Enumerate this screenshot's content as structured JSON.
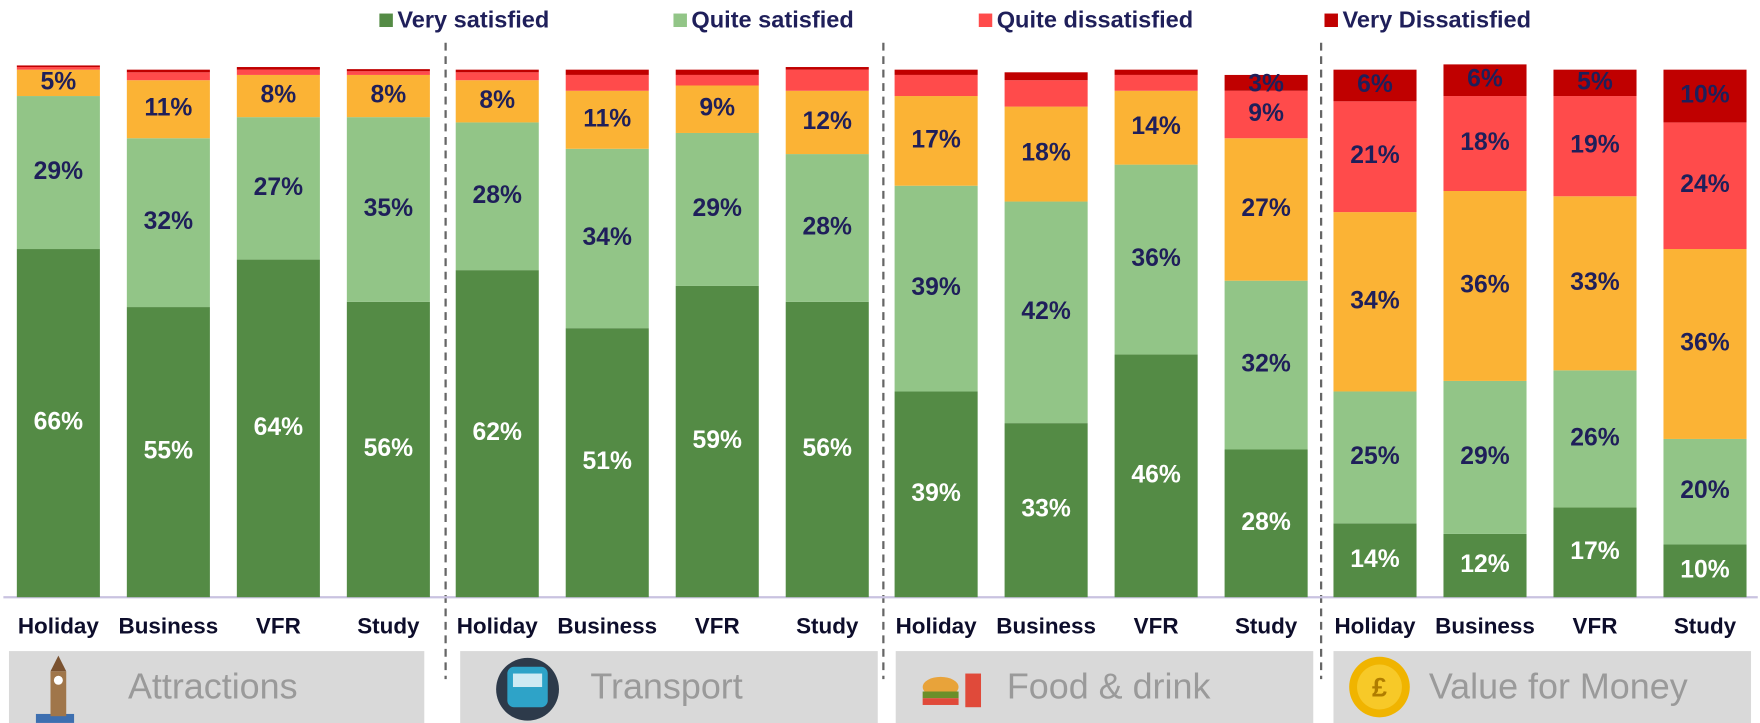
{
  "chart_data": {
    "type": "stacked_bar",
    "groups": [
      "Attractions",
      "Transport",
      "Food & drink",
      "Value for Money"
    ],
    "categories": [
      "Holiday",
      "Business",
      "VFR",
      "Study",
      "Holiday",
      "Business",
      "VFR",
      "Study",
      "Holiday",
      "Business",
      "VFR",
      "Study",
      "Holiday",
      "Business",
      "VFR",
      "Study"
    ],
    "ylim": [
      0,
      100
    ],
    "series": [
      {
        "name": "Very satisfied",
        "color": "#548b45",
        "label_color": "#ffffff",
        "values": [
          66,
          55,
          64,
          56,
          62,
          51,
          59,
          56,
          39,
          33,
          46,
          28,
          14,
          12,
          17,
          10
        ],
        "value_labels": [
          "66%",
          "55%",
          "64%",
          "56%",
          "62%",
          "51%",
          "59%",
          "56%",
          "39%",
          "33%",
          "46%",
          "28%",
          "14%",
          "12%",
          "17%",
          "10%"
        ]
      },
      {
        "name": "Quite satisfied",
        "color": "#92c587",
        "label_color": "#1f1f5a",
        "values": [
          29,
          32,
          27,
          35,
          28,
          34,
          29,
          28,
          39,
          42,
          36,
          32,
          25,
          29,
          26,
          20
        ],
        "value_labels": [
          "29%",
          "32%",
          "27%",
          "35%",
          "28%",
          "34%",
          "29%",
          "28%",
          "39%",
          "42%",
          "36%",
          "32%",
          "25%",
          "29%",
          "26%",
          "20%"
        ]
      },
      {
        "name": null,
        "color": "#fbb335",
        "label_color": "#1f1f5a",
        "values": [
          5,
          11,
          8,
          8,
          8,
          11,
          9,
          12,
          17,
          18,
          14,
          27,
          34,
          36,
          33,
          36
        ],
        "value_labels": [
          "5%",
          "11%",
          "8%",
          "8%",
          "8%",
          "11%",
          "9%",
          "12%",
          "17%",
          "18%",
          "14%",
          "27%",
          "34%",
          "36%",
          "33%",
          "36%"
        ]
      },
      {
        "name": "Quite dissatisfied",
        "color": "#ff4b4b",
        "label_color": "#1f1f5a",
        "values": [
          0.5,
          1.5,
          1,
          0.7,
          1.5,
          3,
          2,
          4,
          4,
          5,
          3,
          9,
          21,
          18,
          19,
          24
        ],
        "value_labels": [
          null,
          null,
          null,
          null,
          null,
          null,
          null,
          null,
          null,
          null,
          null,
          "9%",
          "21%",
          "18%",
          "19%",
          "24%"
        ]
      },
      {
        "name": "Very Dissatisfied",
        "color": "#c00000",
        "label_color": "#1f1f5a",
        "values": [
          0.3,
          0.5,
          0.5,
          0.4,
          0.5,
          1,
          1,
          0.5,
          1,
          1.5,
          1,
          3,
          6,
          6,
          5,
          10
        ],
        "value_labels": [
          null,
          null,
          null,
          null,
          null,
          null,
          null,
          null,
          null,
          null,
          null,
          "3%",
          "6%",
          "6%",
          "5%",
          "10%"
        ]
      }
    ]
  }
}
